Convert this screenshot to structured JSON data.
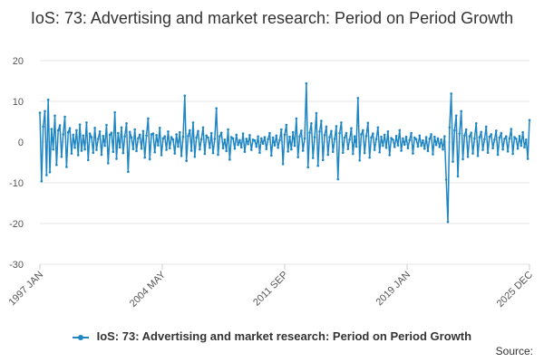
{
  "chart_data": {
    "type": "line",
    "title": "IoS: 73: Advertising and market research: Period on Period Growth",
    "x_tick_labels": [
      "1997 JAN",
      "2004 MAY",
      "2011 SEP",
      "2019 JAN",
      "2025 DEC"
    ],
    "y_ticks": [
      20,
      10,
      0,
      -10,
      -20,
      -30
    ],
    "ylim": [
      -30,
      20
    ],
    "x_range": [
      "1997 JAN",
      "2025 DEC"
    ],
    "grid": true,
    "legend_position": "bottom",
    "color": "#1f86c4",
    "series": [
      {
        "name": "IoS: 73: Advertising and market research: Period on Period Growth",
        "values": [
          7.2,
          -9.6,
          3.8,
          7.6,
          -8.1,
          10.4,
          -7.4,
          3.2,
          -1.8,
          6.5,
          -5.6,
          2.9,
          4.1,
          -3.6,
          1.9,
          6.2,
          -6.1,
          2.4,
          3.4,
          -2.8,
          1.8,
          -1.4,
          2.9,
          -3.2,
          4.3,
          -2.1,
          1.6,
          -1.8,
          4.8,
          -4.4,
          2.1,
          1.2,
          -2.6,
          3.5,
          -1.9,
          0.8,
          2.6,
          -3.1,
          1.5,
          -0.9,
          4.2,
          -5.2,
          1.8,
          2.3,
          -2.4,
          7.3,
          -4.1,
          2.2,
          -1.3,
          3.6,
          -2.7,
          1.4,
          4.6,
          -7.3,
          2.5,
          1.1,
          -1.7,
          3.1,
          -2.2,
          0.9,
          1.8,
          -1.6,
          2.7,
          -3.8,
          1.6,
          5.8,
          -4.2,
          1.9,
          2.1,
          -2.5,
          1.7,
          -0.8,
          3.5,
          -3.2,
          0.9,
          1.4,
          -1.9,
          2.6,
          -1.5,
          1.2,
          0.6,
          -2.8,
          1.9,
          -1.1,
          2.4,
          -3.4,
          1.3,
          11.4,
          -4.6,
          1.5,
          2.9,
          -2.1,
          4.8,
          -3.6,
          1.1,
          2.7,
          -1.8,
          0.7,
          3.6,
          -2.9,
          1.6,
          1.1,
          -1.4,
          2.2,
          -2.7,
          0.8,
          8.3,
          -3.1,
          1.4,
          2.3,
          -1.5,
          0.6,
          -2.2,
          3.1,
          -4.3,
          1.2,
          0.9,
          -1.6,
          1.8,
          -0.7,
          0.5,
          -1.3,
          2.1,
          -2.4,
          0.8,
          -0.5,
          1.7,
          -1.9,
          0.6,
          0.4,
          -1.1,
          1.4,
          -2.6,
          0.9,
          -0.4,
          1.2,
          -1.7,
          0.7,
          2.2,
          -3.3,
          1.1,
          -0.8,
          1.6,
          -1.4,
          0.5,
          3.1,
          -5.4,
          1.8,
          4.2,
          -2.3,
          1.3,
          -1.8,
          2.4,
          -0.9,
          5.8,
          -3.7,
          1.4,
          2.8,
          -2.1,
          0.9,
          14.4,
          -6.2,
          2.3,
          4.6,
          -3.9,
          1.2,
          7.1,
          -5.8,
          2.6,
          5.2,
          -4.4,
          1.7,
          3.8,
          -3.1,
          1.2,
          2.7,
          -2.4,
          0.8,
          3.9,
          -9.1,
          2.2,
          4.8,
          -2.6,
          1.1,
          2.2,
          -1.7,
          0.6,
          3.4,
          -2.9,
          1.4,
          -1.1,
          10.8,
          -4.5,
          1.9,
          2.9,
          -2.7,
          1.5,
          4.7,
          -3.8,
          1.1,
          2.1,
          -1.9,
          0.7,
          3.6,
          -2.5,
          1.3,
          -0.9,
          1.8,
          -1.4,
          2.6,
          -3.2,
          1.0,
          0.6,
          -1.2,
          1.5,
          -0.8,
          2.9,
          -2.1,
          0.9,
          -0.6,
          1.3,
          -1.5,
          0.5,
          2.2,
          -2.8,
          1.1,
          0.7,
          -1.1,
          1.6,
          -0.9,
          0.4,
          -1.6,
          1.2,
          -2.2,
          0.8,
          1.9,
          -3.0,
          1.3,
          -0.7,
          0.9,
          -1.2,
          0.6,
          -1.8,
          1.4,
          -9.2,
          -19.6,
          3.6,
          11.9,
          -4.8,
          2.9,
          6.5,
          -8.4,
          2.1,
          7.6,
          -4.2,
          1.6,
          3.1,
          -3.6,
          1.4,
          2.3,
          -2.8,
          0.9,
          4.6,
          -3.4,
          1.2,
          2.5,
          -1.9,
          0.7,
          3.8,
          -2.6,
          1.3,
          1.9,
          -1.5,
          0.6,
          2.8,
          -3.1,
          1.1,
          2.2,
          -1.8,
          0.8,
          1.4,
          -2.3,
          0.9,
          3.2,
          -2.9,
          1.2,
          0.8,
          -1.6,
          1.5,
          -0.9,
          2.4,
          -1.3,
          0.6,
          -4.1,
          5.4
        ]
      }
    ]
  },
  "footer": {
    "source_label": "Source:"
  }
}
